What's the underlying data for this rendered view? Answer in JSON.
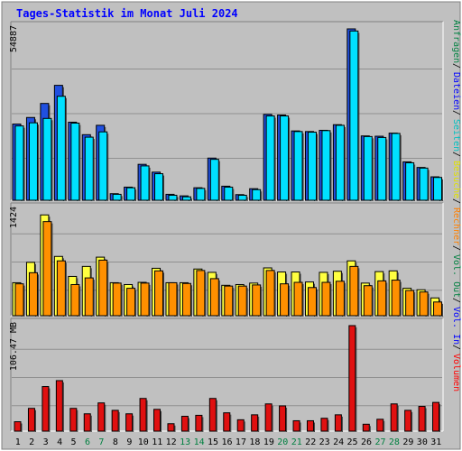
{
  "title": "Tages-Statistik im Monat Juli 2024",
  "colors": {
    "background": "#c0c0c0",
    "title": "#0000ff",
    "anfragen": "#2050e0",
    "dateien": "#00e0ff",
    "besuche": "#ffff40",
    "rechner": "#ff9000",
    "volumen": "#e01010",
    "weekend_label": "#008040",
    "label_separator": "#000000"
  },
  "right_labels": [
    {
      "text": "Anfragen",
      "color": "#008040"
    },
    {
      "text": "Dateien",
      "color": "#0000ff"
    },
    {
      "text": "Seiten",
      "color": "#00c0c0"
    },
    {
      "text": "Besuche",
      "color": "#e0e000"
    },
    {
      "text": "Rechner",
      "color": "#ff8000"
    },
    {
      "text": "Vol. Out",
      "color": "#008040"
    },
    {
      "text": "Vol. In",
      "color": "#0000ff"
    },
    {
      "text": "Volumen",
      "color": "#ff0000"
    }
  ],
  "chart_data": [
    {
      "type": "bar",
      "title": "Tages-Statistik im Monat Juli 2024",
      "panel": "top",
      "ymax_label": "54887",
      "ylim": [
        0,
        54887
      ],
      "categories": [
        "1",
        "2",
        "3",
        "4",
        "5",
        "6",
        "7",
        "8",
        "9",
        "10",
        "11",
        "12",
        "13",
        "14",
        "15",
        "16",
        "17",
        "18",
        "19",
        "20",
        "21",
        "22",
        "23",
        "24",
        "25",
        "26",
        "27",
        "28",
        "29",
        "30",
        "31"
      ],
      "weekend_days": [
        6,
        7,
        13,
        14,
        20,
        21,
        27,
        28
      ],
      "series": [
        {
          "name": "Anfragen",
          "values": [
            24400,
            26500,
            31000,
            36800,
            25000,
            21000,
            24000,
            2100,
            4200,
            11500,
            9000,
            1900,
            1400,
            4000,
            13500,
            4500,
            1800,
            3700,
            27500,
            27300,
            22200,
            22000,
            22400,
            24200,
            54887,
            20600,
            20500,
            21500,
            12300,
            10500,
            7500
          ]
        },
        {
          "name": "Dateien",
          "values": [
            23800,
            24800,
            26200,
            33300,
            24700,
            20200,
            21900,
            1900,
            4000,
            11000,
            8500,
            1600,
            1100,
            3800,
            13100,
            4200,
            1600,
            3400,
            27000,
            27000,
            22000,
            21800,
            22300,
            24000,
            54200,
            20400,
            20100,
            21400,
            12000,
            10300,
            7300
          ]
        }
      ]
    },
    {
      "type": "bar",
      "panel": "middle",
      "ymax_label": "1424",
      "ylim": [
        0,
        1424
      ],
      "categories": [
        "1",
        "2",
        "3",
        "4",
        "5",
        "6",
        "7",
        "8",
        "9",
        "10",
        "11",
        "12",
        "13",
        "14",
        "15",
        "16",
        "17",
        "18",
        "19",
        "20",
        "21",
        "22",
        "23",
        "24",
        "25",
        "26",
        "27",
        "28",
        "29",
        "30",
        "31"
      ],
      "series": [
        {
          "name": "Besuche",
          "values": [
            445,
            720,
            1360,
            800,
            530,
            665,
            790,
            445,
            420,
            450,
            640,
            445,
            445,
            630,
            585,
            410,
            420,
            440,
            645,
            590,
            590,
            455,
            585,
            600,
            740,
            440,
            595,
            605,
            370,
            350,
            240
          ]
        },
        {
          "name": "Rechner",
          "values": [
            430,
            580,
            1270,
            740,
            420,
            510,
            750,
            440,
            370,
            440,
            605,
            445,
            435,
            610,
            500,
            400,
            400,
            415,
            610,
            430,
            450,
            380,
            450,
            465,
            665,
            405,
            470,
            480,
            340,
            320,
            185
          ]
        }
      ]
    },
    {
      "type": "bar",
      "panel": "bottom",
      "ymax_label": "106.47 MB",
      "ylim": [
        0,
        106.47
      ],
      "categories": [
        "1",
        "2",
        "3",
        "4",
        "5",
        "6",
        "7",
        "8",
        "9",
        "10",
        "11",
        "12",
        "13",
        "14",
        "15",
        "16",
        "17",
        "18",
        "19",
        "20",
        "21",
        "22",
        "23",
        "24",
        "25",
        "26",
        "27",
        "28",
        "29",
        "30",
        "31"
      ],
      "series": [
        {
          "name": "Volumen",
          "values": [
            9.5,
            23,
            45,
            51,
            23,
            17.5,
            28.5,
            21,
            17.5,
            33,
            22,
            7.5,
            15,
            16,
            33,
            18.5,
            11.5,
            16.5,
            27.5,
            25.5,
            10.5,
            10.5,
            13,
            16.5,
            106.47,
            7,
            12,
            27.5,
            21,
            25,
            29
          ]
        }
      ]
    }
  ]
}
